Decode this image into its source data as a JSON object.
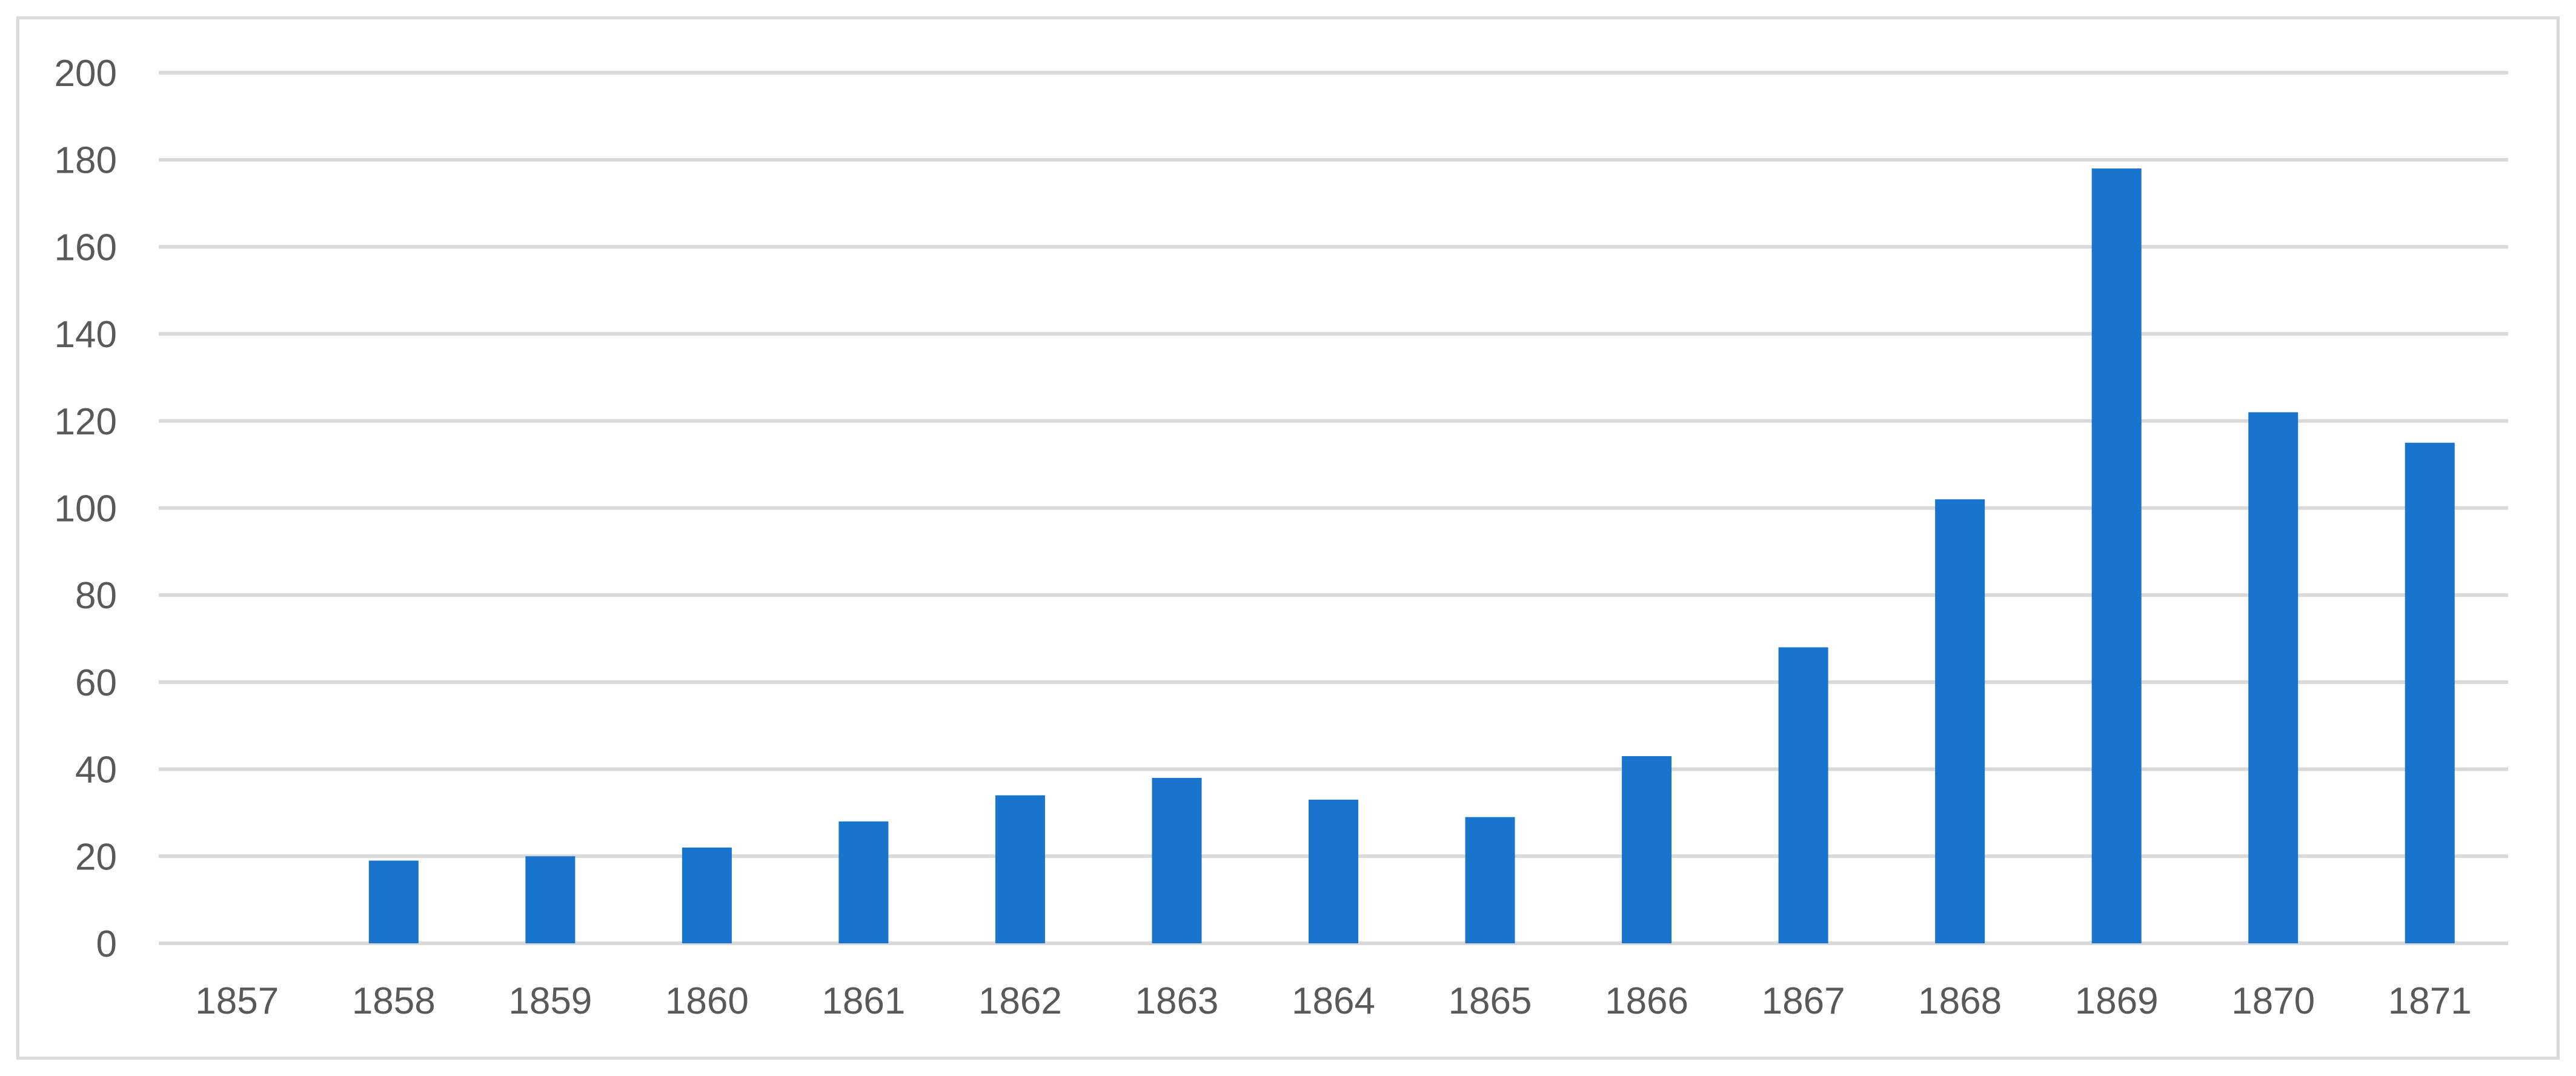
{
  "chart_data": {
    "type": "bar",
    "title": "",
    "xlabel": "",
    "ylabel": "",
    "categories": [
      "1857",
      "1858",
      "1859",
      "1860",
      "1861",
      "1862",
      "1863",
      "1864",
      "1865",
      "1866",
      "1867",
      "1868",
      "1869",
      "1870",
      "1871"
    ],
    "values": [
      0,
      19,
      20,
      22,
      28,
      34,
      38,
      33,
      29,
      43,
      68,
      102,
      178,
      122,
      115
    ],
    "ylim": [
      0,
      200
    ],
    "yticks": [
      "0",
      "20",
      "40",
      "60",
      "80",
      "100",
      "120",
      "140",
      "160",
      "180",
      "200"
    ],
    "grid": true,
    "legend": "none",
    "colors": {
      "bar": "#1874cd",
      "gridline": "#d9d9d9",
      "tick_text": "#595959",
      "frame": "#d9d9d9"
    }
  }
}
